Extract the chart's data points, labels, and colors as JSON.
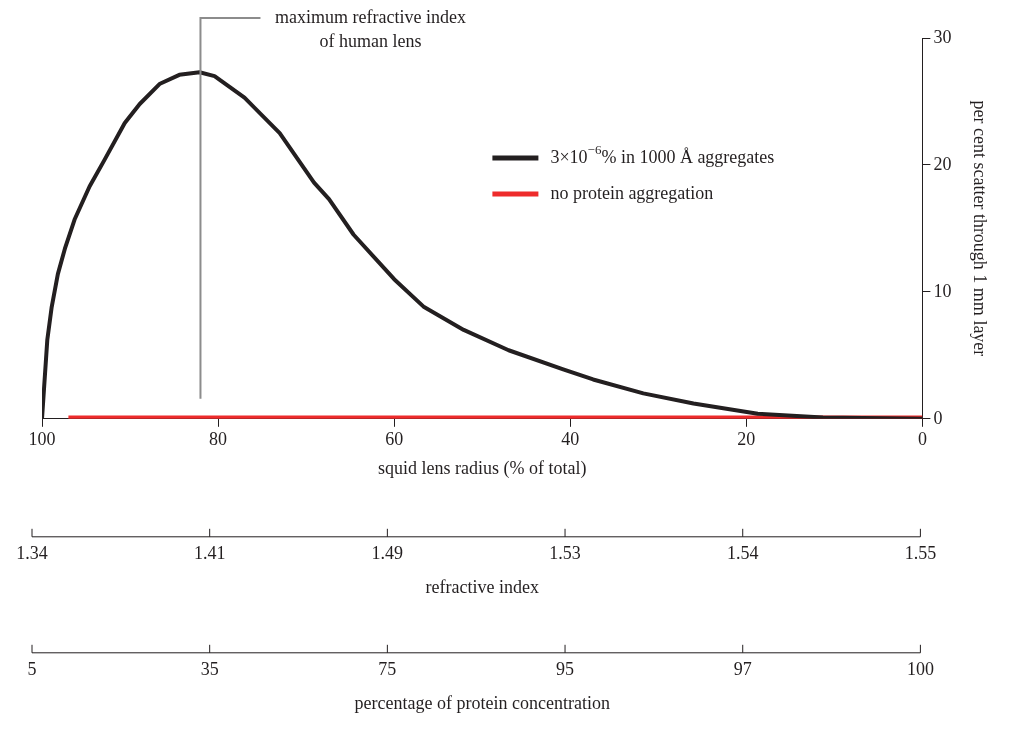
{
  "chart_data": {
    "type": "line",
    "xlabel": "squid lens radius (% of total)",
    "ylabel": "per cent scatter through 1 mm layer",
    "xlim": [
      100,
      0
    ],
    "xticks": [
      100,
      80,
      60,
      40,
      20,
      0
    ],
    "ylim": [
      0,
      30
    ],
    "yticks": [
      0,
      10,
      20,
      30
    ],
    "annotations": [
      "1.34",
      "1.41",
      "1.49",
      "1.53",
      "1.54",
      "1.55",
      "refractive index",
      "5",
      "35",
      "75",
      "95",
      "97",
      "100",
      "percentage of protein concentration"
    ],
    "legend": "top right",
    "marker": "none",
    "line_style": "solid",
    "ref_lines": [
      {
        "axis": "x",
        "value": 82,
        "label": "maximum refractive index of human lens",
        "color": "#8c8c8c"
      }
    ],
    "series": [
      {
        "name": "3×10$^{−6}$% in 1000 Å aggregates",
        "color": "#231f20",
        "x": [
          100,
          99.4,
          98.9,
          98.2,
          97.4,
          96.3,
          94.6,
          92.9,
          90.6,
          88.9,
          86.6,
          84.4,
          82.1,
          80.4,
          77,
          73,
          69.1,
          67.4,
          64.6,
          60,
          56.6,
          52.1,
          47,
          40.8,
          37.4,
          31.7,
          26,
          18.7,
          11.3,
          0
        ],
        "values": [
          0,
          6.2,
          8.8,
          11.4,
          13.4,
          15.7,
          18.3,
          20.4,
          23.3,
          24.8,
          26.4,
          27.1,
          27.3,
          27,
          25.3,
          22.5,
          18.6,
          17.3,
          14.5,
          11,
          8.8,
          7,
          5.4,
          3.9,
          3.1,
          2,
          1.2,
          0.4,
          0.1,
          0
        ]
      },
      {
        "name": "no protein aggregation",
        "color": "#ee2b2b",
        "x": [
          97,
          0
        ],
        "values": [
          0.1,
          0.1
        ]
      }
    ]
  }
}
